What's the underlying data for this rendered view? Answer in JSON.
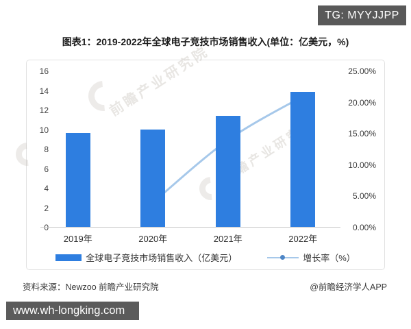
{
  "badge": {
    "text": "TG: MYYJJPP"
  },
  "title": "图表1：2019-2022年全球电子竞技市场销售收入(单位：亿美元，%)",
  "watermark": {
    "text": "前瞻产业研究院"
  },
  "chart_data": {
    "type": "bar+line combo",
    "categories": [
      "2019年",
      "2020年",
      "2021年",
      "2022年"
    ],
    "series": [
      {
        "name": "全球电子竞技市场销售收入（亿美元）",
        "type": "bar",
        "axis": "left",
        "values": [
          9.6,
          10.0,
          11.4,
          13.8
        ],
        "color": "#2e7ee0"
      },
      {
        "name": "增长率（%）",
        "type": "line",
        "axis": "right",
        "values": [
          null,
          4.0,
          14.0,
          21.0
        ],
        "color": "#a6c8ea",
        "marker": "hollow-circle"
      }
    ],
    "left_axis": {
      "min": 0,
      "max": 16,
      "ticks": [
        "16",
        "14",
        "12",
        "10",
        "8",
        "6",
        "4",
        "2",
        "0"
      ]
    },
    "right_axis": {
      "min": 0,
      "max": 25,
      "ticks": [
        "25.00%",
        "20.00%",
        "15.00%",
        "10.00%",
        "5.00%",
        "0.00%"
      ]
    },
    "grid": "off",
    "legend_position": "bottom"
  },
  "legend": {
    "bar_label": "全球电子竞技市场销售收入（亿美元）",
    "line_label": "增长率（%）"
  },
  "source": {
    "left": "资料来源：Newzoo 前瞻产业研究院",
    "right": "@前瞻经济学人APP"
  },
  "footer": {
    "url": "www.wh-longking.com"
  }
}
